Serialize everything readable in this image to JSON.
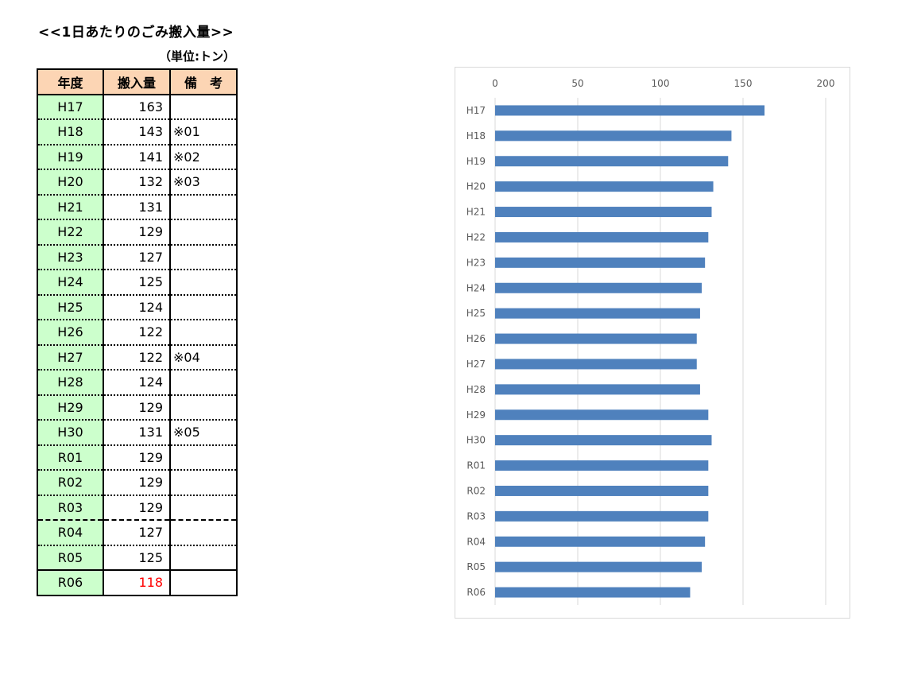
{
  "title": "<<1日あたりのごみ搬入量>>",
  "unit": "（単位:トン）",
  "table": {
    "headers": [
      "年度",
      "搬入量",
      "備　考"
    ],
    "rows": [
      {
        "year": "H17",
        "value": "163",
        "note": ""
      },
      {
        "year": "H18",
        "value": "143",
        "note": "※01"
      },
      {
        "year": "H19",
        "value": "141",
        "note": "※02"
      },
      {
        "year": "H20",
        "value": "132",
        "note": "※03"
      },
      {
        "year": "H21",
        "value": "131",
        "note": ""
      },
      {
        "year": "H22",
        "value": "129",
        "note": ""
      },
      {
        "year": "H23",
        "value": "127",
        "note": ""
      },
      {
        "year": "H24",
        "value": "125",
        "note": ""
      },
      {
        "year": "H25",
        "value": "124",
        "note": ""
      },
      {
        "year": "H26",
        "value": "122",
        "note": ""
      },
      {
        "year": "H27",
        "value": "122",
        "note": "※04"
      },
      {
        "year": "H28",
        "value": "124",
        "note": ""
      },
      {
        "year": "H29",
        "value": "129",
        "note": ""
      },
      {
        "year": "H30",
        "value": "131",
        "note": "※05"
      },
      {
        "year": "R01",
        "value": "129",
        "note": ""
      },
      {
        "year": "R02",
        "value": "129",
        "note": ""
      },
      {
        "year": "R03",
        "value": "129",
        "note": ""
      },
      {
        "year": "R04",
        "value": "127",
        "note": ""
      },
      {
        "year": "R05",
        "value": "125",
        "note": ""
      },
      {
        "year": "R06",
        "value": "118",
        "note": ""
      }
    ],
    "highlight_color": "#ff0000"
  },
  "chart_data": {
    "type": "bar",
    "orientation": "horizontal",
    "categories": [
      "H17",
      "H18",
      "H19",
      "H20",
      "H21",
      "H22",
      "H23",
      "H24",
      "H25",
      "H26",
      "H27",
      "H28",
      "H29",
      "H30",
      "R01",
      "R02",
      "R03",
      "R04",
      "R05",
      "R06"
    ],
    "values": [
      163,
      143,
      141,
      132,
      131,
      129,
      127,
      125,
      124,
      122,
      122,
      124,
      129,
      131,
      129,
      129,
      129,
      127,
      125,
      118
    ],
    "xlim": [
      0,
      200
    ],
    "xticks": [
      "0",
      "50",
      "100",
      "150",
      "200"
    ],
    "x_axis_position": "top",
    "grid": true,
    "bar_color": "#4f81bd",
    "title": "",
    "xlabel": "",
    "ylabel": ""
  }
}
